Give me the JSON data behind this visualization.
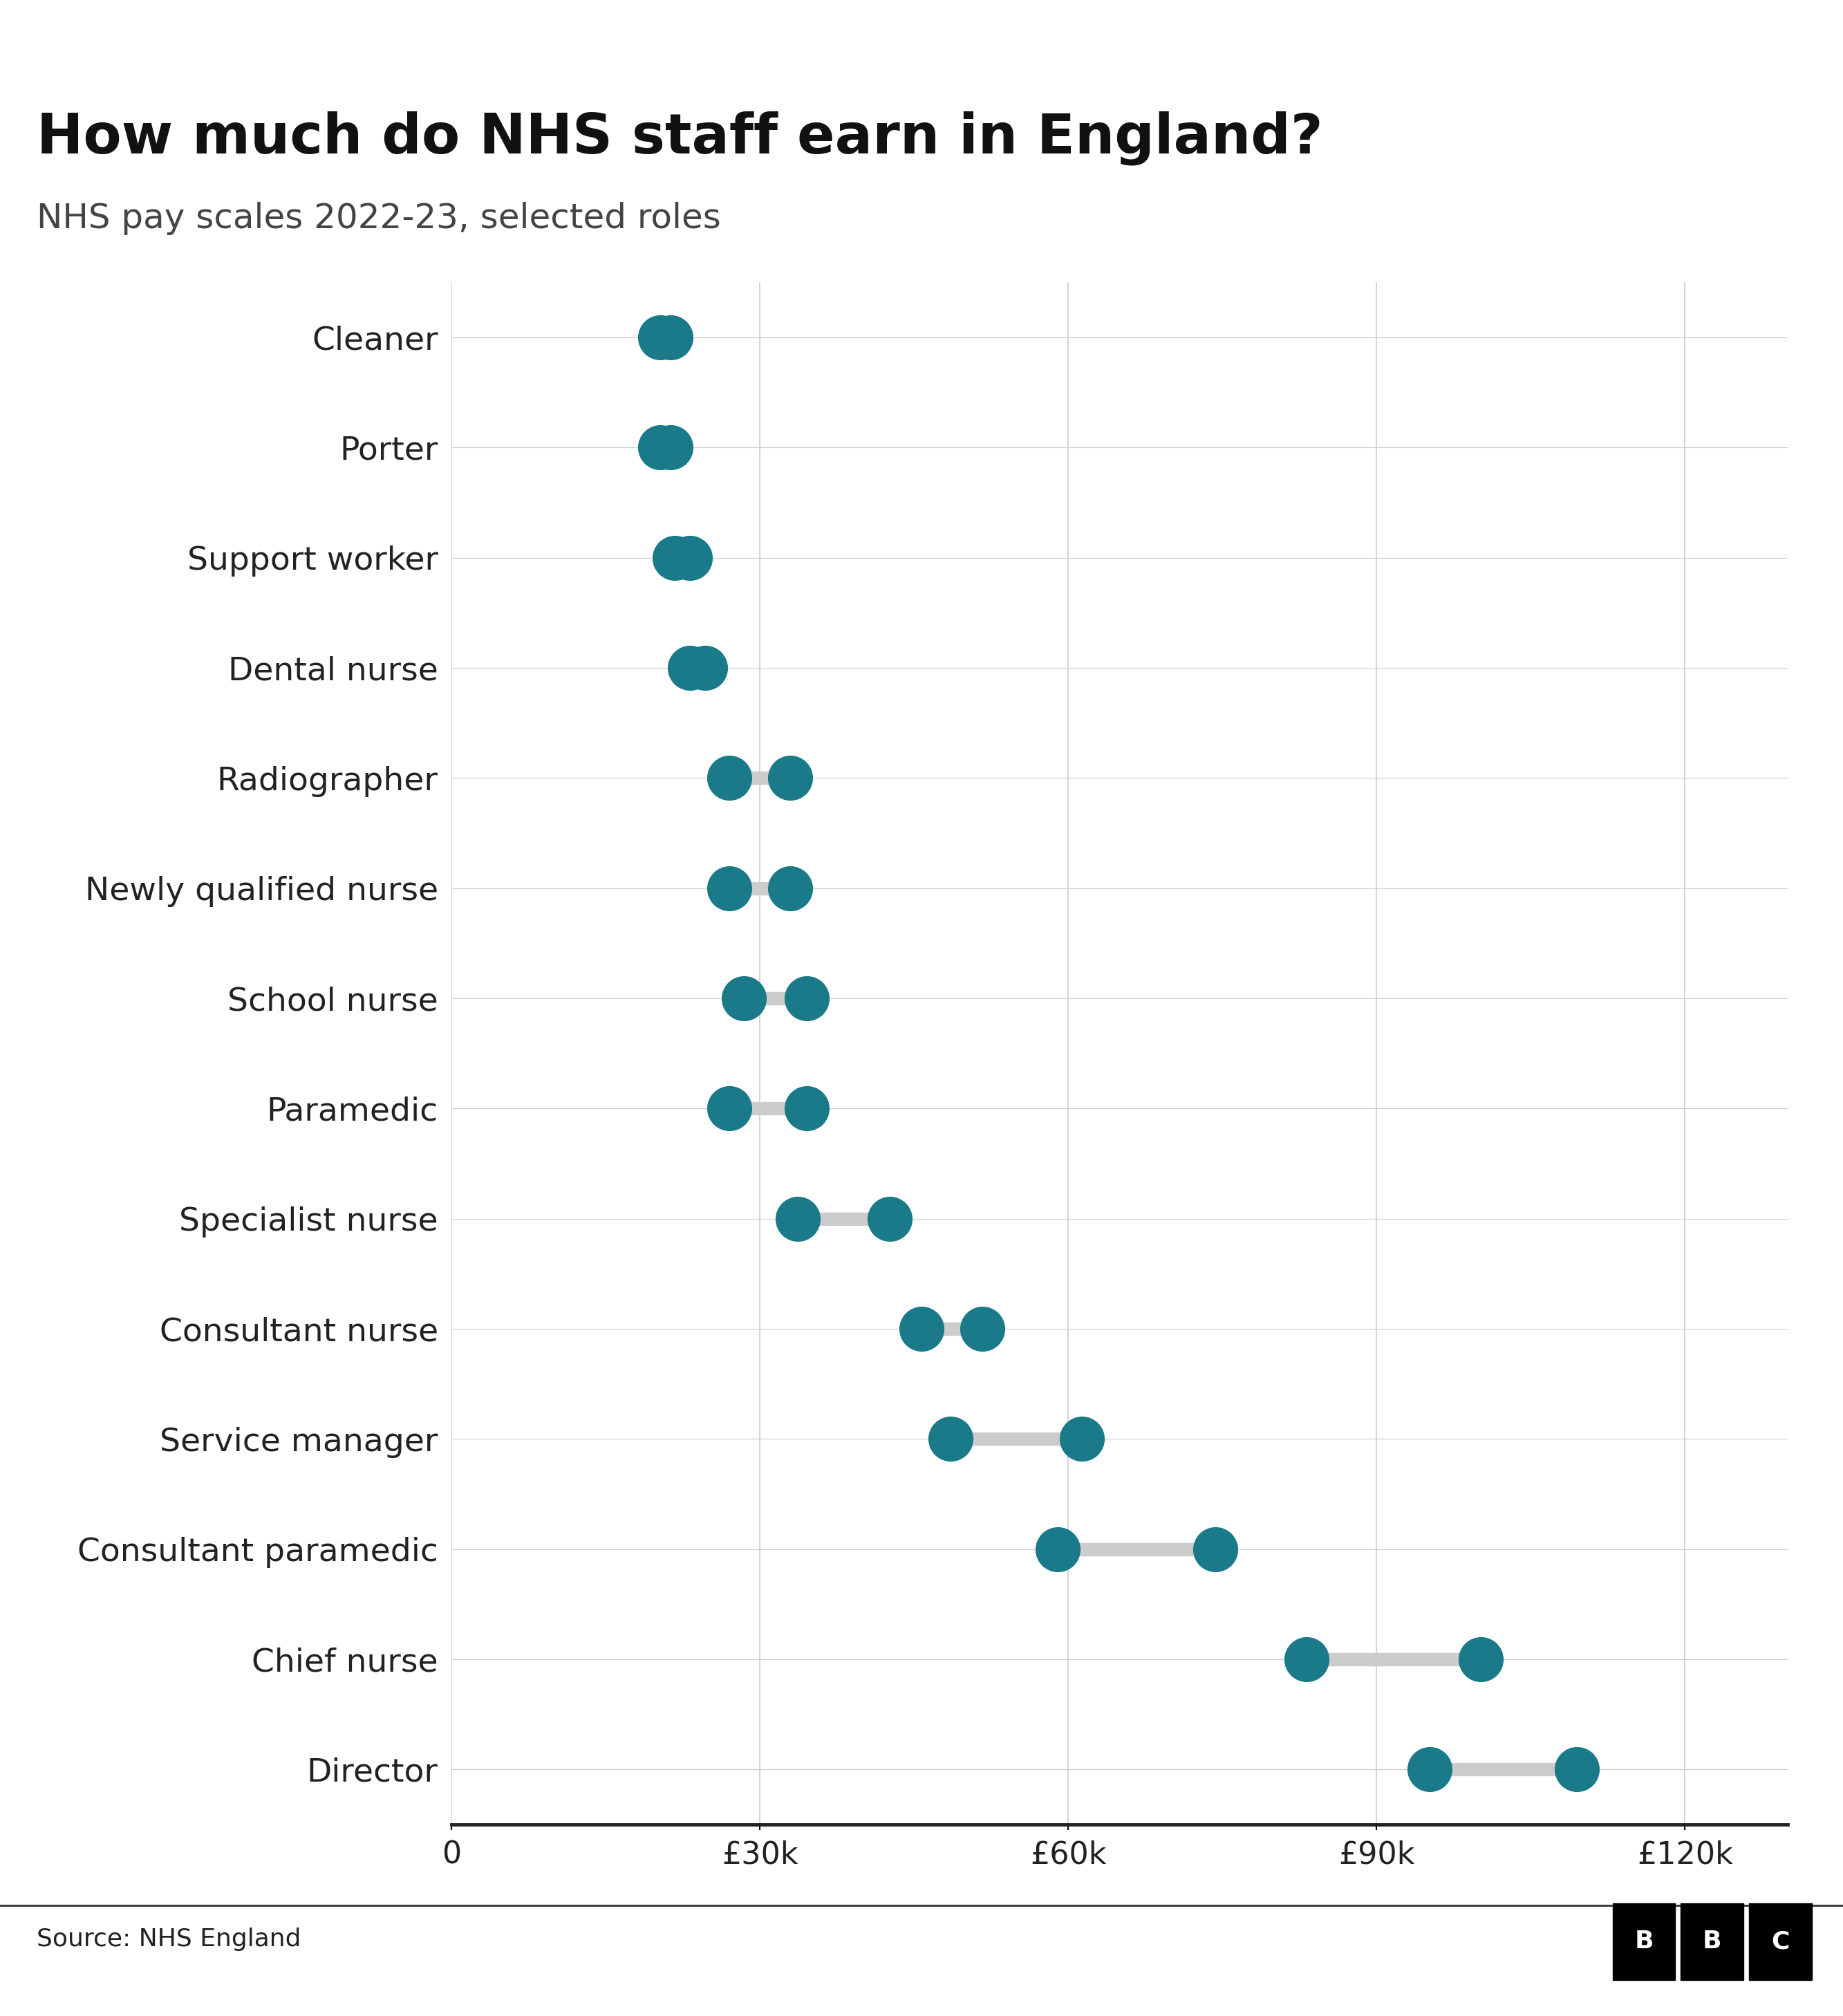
{
  "title": "How much do NHS staff earn in England?",
  "subtitle": "NHS pay scales 2022-23, selected roles",
  "source": "Source: NHS England",
  "roles": [
    "Cleaner",
    "Porter",
    "Support worker",
    "Dental nurse",
    "Radiographer",
    "Newly qualified nurse",
    "School nurse",
    "Paramedic",
    "Specialist nurse",
    "Consultant nurse",
    "Service manager",
    "Consultant paramedic",
    "Chief nurse",
    "Director"
  ],
  "min_salary": [
    20270,
    20270,
    21730,
    23177,
    27055,
    27055,
    28407,
    27055,
    33706,
    45753,
    48526,
    58972,
    83175,
    95135
  ],
  "max_salary": [
    21318,
    21318,
    23177,
    24702,
    32934,
    32934,
    34581,
    34581,
    42618,
    51668,
    61325,
    74290,
    100151,
    109475
  ],
  "dot_color": "#1a7a8a",
  "connector_color": "#cccccc",
  "background_color": "#ffffff",
  "grid_color": "#cccccc",
  "axis_color": "#222222",
  "title_fontsize": 58,
  "subtitle_fontsize": 36,
  "label_fontsize": 34,
  "tick_fontsize": 32,
  "source_fontsize": 26,
  "dot_size": 2200,
  "connector_linewidth": 14,
  "xlim": [
    0,
    130000
  ],
  "xticks": [
    0,
    30000,
    60000,
    90000,
    120000
  ],
  "xticklabels": [
    "0",
    "£30k",
    "£60k",
    "£90k",
    "£120k"
  ]
}
